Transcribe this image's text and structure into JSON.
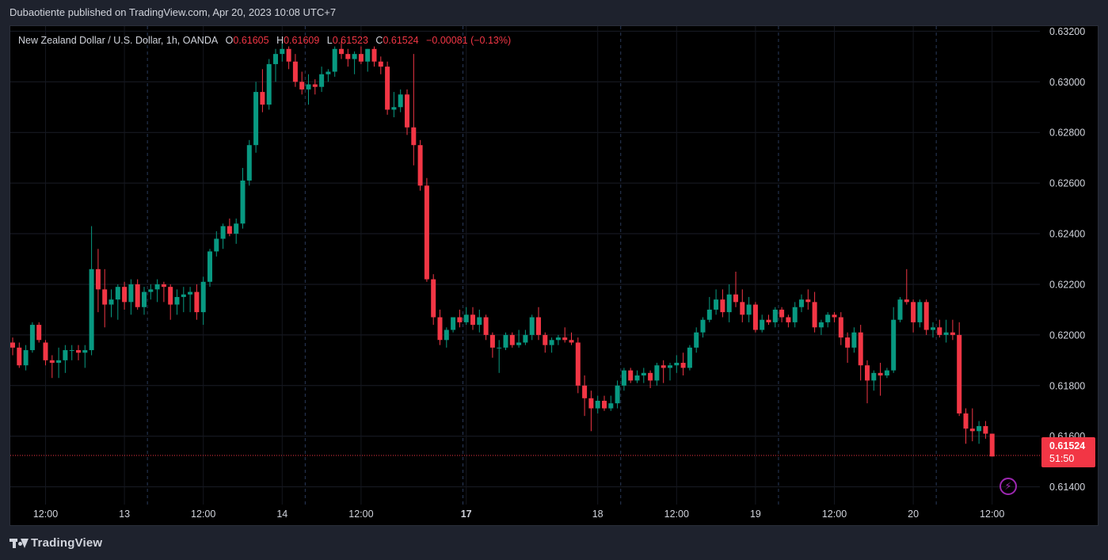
{
  "header": {
    "text": "Dubaotiente published on TradingView.com, Apr 20, 2023 10:08 UTC+7"
  },
  "legend": {
    "symbol": "New Zealand Dollar / U.S. Dollar, 1h, OANDA",
    "open_label": "O",
    "open": "0.61605",
    "high_label": "H",
    "high": "0.61609",
    "low_label": "L",
    "low": "0.61523",
    "close_label": "C",
    "close": "0.61524",
    "change": "−0.00081 (−0.13%)"
  },
  "price_tag": {
    "price": "0.61524",
    "countdown": "51:50"
  },
  "footer": {
    "brand": "TradingView"
  },
  "icons": {
    "logo": "tradingview-logo-icon",
    "alert": "lightning-bolt-icon"
  },
  "colors": {
    "up": "#089981",
    "down": "#f23645",
    "background": "#000000",
    "panel": "#1e222d"
  },
  "chart_data": {
    "type": "candlestick",
    "timeframe": "1h",
    "ylim": [
      0.6133,
      0.6322
    ],
    "y_ticks": [
      "0.61400",
      "0.61600",
      "0.61800",
      "0.62000",
      "0.62200",
      "0.62400",
      "0.62600",
      "0.62800",
      "0.63000",
      "0.63200"
    ],
    "x_ticks": [
      {
        "label": "12:00",
        "bar": 5,
        "bold": false
      },
      {
        "label": "13",
        "bar": 17,
        "bold": false
      },
      {
        "label": "12:00",
        "bar": 29,
        "bold": false
      },
      {
        "label": "14",
        "bar": 41,
        "bold": false
      },
      {
        "label": "12:00",
        "bar": 53,
        "bold": false
      },
      {
        "label": "17",
        "bar": 69,
        "bold": true
      },
      {
        "label": "18",
        "bar": 89,
        "bold": false
      },
      {
        "label": "12:00",
        "bar": 101,
        "bold": false
      },
      {
        "label": "19",
        "bar": 113,
        "bold": false
      },
      {
        "label": "12:00",
        "bar": 125,
        "bold": false
      },
      {
        "label": "20",
        "bar": 137,
        "bold": false
      },
      {
        "label": "12:00",
        "bar": 149,
        "bold": false
      }
    ],
    "session_breaks": [
      20.5,
      44.5,
      68.5,
      92.5,
      116.5,
      140.5
    ],
    "last_price": 0.61524,
    "candles": [
      [
        0.6197,
        0.6199,
        0.6192,
        0.6195
      ],
      [
        0.6195,
        0.6197,
        0.6187,
        0.6188
      ],
      [
        0.6188,
        0.6196,
        0.6186,
        0.6194
      ],
      [
        0.6194,
        0.6205,
        0.6193,
        0.6204
      ],
      [
        0.6204,
        0.6205,
        0.6197,
        0.6198
      ],
      [
        0.6197,
        0.6198,
        0.6188,
        0.619
      ],
      [
        0.619,
        0.6192,
        0.6183,
        0.6189
      ],
      [
        0.6189,
        0.6195,
        0.6183,
        0.619
      ],
      [
        0.619,
        0.6196,
        0.6185,
        0.6194
      ],
      [
        0.6194,
        0.6196,
        0.619,
        0.6194
      ],
      [
        0.6194,
        0.6196,
        0.619,
        0.6193
      ],
      [
        0.6193,
        0.6196,
        0.6187,
        0.6194
      ],
      [
        0.6194,
        0.6243,
        0.6192,
        0.6226
      ],
      [
        0.6226,
        0.6234,
        0.6209,
        0.6218
      ],
      [
        0.6218,
        0.6226,
        0.6203,
        0.6212
      ],
      [
        0.6212,
        0.6218,
        0.6207,
        0.6214
      ],
      [
        0.6214,
        0.622,
        0.6206,
        0.6219
      ],
      [
        0.6219,
        0.6221,
        0.621,
        0.6213
      ],
      [
        0.6213,
        0.6222,
        0.6208,
        0.622
      ],
      [
        0.622,
        0.6222,
        0.621,
        0.6211
      ],
      [
        0.6211,
        0.6219,
        0.6208,
        0.6217
      ],
      [
        0.6217,
        0.622,
        0.6214,
        0.6218
      ],
      [
        0.6218,
        0.6222,
        0.6213,
        0.622
      ],
      [
        0.622,
        0.6221,
        0.6213,
        0.6219
      ],
      [
        0.6219,
        0.622,
        0.6206,
        0.6212
      ],
      [
        0.6212,
        0.6218,
        0.6208,
        0.6215
      ],
      [
        0.6215,
        0.6219,
        0.6209,
        0.6216
      ],
      [
        0.6216,
        0.6219,
        0.6209,
        0.6217
      ],
      [
        0.6217,
        0.622,
        0.6206,
        0.6209
      ],
      [
        0.6209,
        0.6223,
        0.6204,
        0.6221
      ],
      [
        0.6221,
        0.6234,
        0.6219,
        0.6233
      ],
      [
        0.6233,
        0.6241,
        0.6231,
        0.6238
      ],
      [
        0.6238,
        0.6244,
        0.6234,
        0.6243
      ],
      [
        0.6243,
        0.6246,
        0.6239,
        0.624
      ],
      [
        0.624,
        0.6246,
        0.6236,
        0.6244
      ],
      [
        0.6244,
        0.6266,
        0.6242,
        0.6261
      ],
      [
        0.6261,
        0.6277,
        0.6259,
        0.6275
      ],
      [
        0.6275,
        0.63,
        0.6272,
        0.6296
      ],
      [
        0.6296,
        0.6305,
        0.6288,
        0.6291
      ],
      [
        0.6291,
        0.6309,
        0.6289,
        0.6307
      ],
      [
        0.6307,
        0.6313,
        0.63,
        0.6311
      ],
      [
        0.6311,
        0.6316,
        0.6308,
        0.6313
      ],
      [
        0.6313,
        0.6314,
        0.6305,
        0.6308
      ],
      [
        0.6308,
        0.6311,
        0.6298,
        0.63
      ],
      [
        0.63,
        0.6304,
        0.6295,
        0.6297
      ],
      [
        0.6297,
        0.6303,
        0.6291,
        0.6299
      ],
      [
        0.6299,
        0.6301,
        0.6295,
        0.6298
      ],
      [
        0.6298,
        0.6306,
        0.6296,
        0.6303
      ],
      [
        0.6303,
        0.6305,
        0.63,
        0.6304
      ],
      [
        0.6304,
        0.6314,
        0.6302,
        0.6313
      ],
      [
        0.6313,
        0.6316,
        0.6309,
        0.6311
      ],
      [
        0.6311,
        0.6313,
        0.6306,
        0.6309
      ],
      [
        0.6309,
        0.6312,
        0.6303,
        0.6311
      ],
      [
        0.6311,
        0.6314,
        0.6307,
        0.6308
      ],
      [
        0.6308,
        0.6313,
        0.6304,
        0.6313
      ],
      [
        0.6313,
        0.6314,
        0.6306,
        0.6308
      ],
      [
        0.6308,
        0.631,
        0.6303,
        0.6306
      ],
      [
        0.6306,
        0.6308,
        0.6287,
        0.6289
      ],
      [
        0.6289,
        0.6296,
        0.6286,
        0.629
      ],
      [
        0.629,
        0.6297,
        0.6288,
        0.6295
      ],
      [
        0.6295,
        0.6297,
        0.6279,
        0.6282
      ],
      [
        0.6282,
        0.6311,
        0.6267,
        0.6275
      ],
      [
        0.6275,
        0.6277,
        0.6257,
        0.6259
      ],
      [
        0.6259,
        0.6262,
        0.6221,
        0.6222
      ],
      [
        0.6222,
        0.6224,
        0.6204,
        0.6207
      ],
      [
        0.6207,
        0.621,
        0.6196,
        0.6198
      ],
      [
        0.6198,
        0.6203,
        0.6195,
        0.6202
      ],
      [
        0.6202,
        0.6207,
        0.6201,
        0.6207
      ],
      [
        0.6207,
        0.621,
        0.6203,
        0.6205
      ],
      [
        0.6205,
        0.6211,
        0.6204,
        0.6208
      ],
      [
        0.6208,
        0.6211,
        0.6202,
        0.6204
      ],
      [
        0.6204,
        0.621,
        0.6201,
        0.6207
      ],
      [
        0.6207,
        0.6208,
        0.6198,
        0.62
      ],
      [
        0.62,
        0.6201,
        0.6191,
        0.6195
      ],
      [
        0.6195,
        0.6198,
        0.6185,
        0.6195
      ],
      [
        0.6195,
        0.6201,
        0.6194,
        0.62
      ],
      [
        0.62,
        0.6201,
        0.6195,
        0.6196
      ],
      [
        0.6196,
        0.6202,
        0.6195,
        0.6197
      ],
      [
        0.6197,
        0.6202,
        0.6196,
        0.62
      ],
      [
        0.62,
        0.6208,
        0.6198,
        0.6207
      ],
      [
        0.6207,
        0.6211,
        0.6198,
        0.62
      ],
      [
        0.62,
        0.6201,
        0.6193,
        0.6196
      ],
      [
        0.6196,
        0.6199,
        0.6193,
        0.6198
      ],
      [
        0.6198,
        0.62,
        0.6196,
        0.6199
      ],
      [
        0.6199,
        0.6203,
        0.6197,
        0.6198
      ],
      [
        0.6198,
        0.6201,
        0.6196,
        0.6197
      ],
      [
        0.6197,
        0.6199,
        0.6177,
        0.618
      ],
      [
        0.618,
        0.6184,
        0.6168,
        0.6175
      ],
      [
        0.6175,
        0.6178,
        0.6162,
        0.6171
      ],
      [
        0.6171,
        0.6176,
        0.6169,
        0.6174
      ],
      [
        0.6174,
        0.6176,
        0.617,
        0.6171
      ],
      [
        0.6171,
        0.6176,
        0.617,
        0.6173
      ],
      [
        0.6173,
        0.6182,
        0.6171,
        0.618
      ],
      [
        0.618,
        0.6187,
        0.6178,
        0.6186
      ],
      [
        0.6186,
        0.6187,
        0.6181,
        0.6182
      ],
      [
        0.6182,
        0.6186,
        0.6181,
        0.6184
      ],
      [
        0.6184,
        0.6187,
        0.6181,
        0.6185
      ],
      [
        0.6185,
        0.6186,
        0.6179,
        0.6182
      ],
      [
        0.6182,
        0.6189,
        0.618,
        0.6188
      ],
      [
        0.6188,
        0.619,
        0.6181,
        0.6187
      ],
      [
        0.6187,
        0.6189,
        0.6182,
        0.6188
      ],
      [
        0.6188,
        0.6192,
        0.6185,
        0.6189
      ],
      [
        0.6189,
        0.6193,
        0.6184,
        0.6187
      ],
      [
        0.6187,
        0.6196,
        0.6186,
        0.6195
      ],
      [
        0.6195,
        0.6203,
        0.6193,
        0.6201
      ],
      [
        0.6201,
        0.6207,
        0.6199,
        0.6206
      ],
      [
        0.6206,
        0.6215,
        0.6205,
        0.621
      ],
      [
        0.621,
        0.6218,
        0.6208,
        0.6214
      ],
      [
        0.6214,
        0.6218,
        0.6207,
        0.6209
      ],
      [
        0.6209,
        0.622,
        0.6205,
        0.6216
      ],
      [
        0.6216,
        0.6225,
        0.6211,
        0.6213
      ],
      [
        0.6213,
        0.6218,
        0.6205,
        0.6208
      ],
      [
        0.6208,
        0.6215,
        0.6205,
        0.6212
      ],
      [
        0.6212,
        0.6213,
        0.6201,
        0.6202
      ],
      [
        0.6202,
        0.6208,
        0.6201,
        0.6206
      ],
      [
        0.6206,
        0.6208,
        0.6204,
        0.6205
      ],
      [
        0.6205,
        0.6211,
        0.6203,
        0.621
      ],
      [
        0.621,
        0.6211,
        0.6205,
        0.6207
      ],
      [
        0.6207,
        0.6208,
        0.6203,
        0.6205
      ],
      [
        0.6205,
        0.6213,
        0.6203,
        0.6211
      ],
      [
        0.6211,
        0.6216,
        0.6209,
        0.6214
      ],
      [
        0.6214,
        0.6218,
        0.621,
        0.6213
      ],
      [
        0.6213,
        0.6217,
        0.6201,
        0.6203
      ],
      [
        0.6203,
        0.6206,
        0.62,
        0.6205
      ],
      [
        0.6205,
        0.6209,
        0.6203,
        0.6208
      ],
      [
        0.6208,
        0.6209,
        0.6205,
        0.6207
      ],
      [
        0.6207,
        0.6209,
        0.6196,
        0.6199
      ],
      [
        0.6199,
        0.6201,
        0.6189,
        0.6195
      ],
      [
        0.6195,
        0.6203,
        0.6193,
        0.6201
      ],
      [
        0.6201,
        0.6204,
        0.6182,
        0.6188
      ],
      [
        0.6188,
        0.619,
        0.6173,
        0.6182
      ],
      [
        0.6182,
        0.6186,
        0.6178,
        0.6185
      ],
      [
        0.6185,
        0.6189,
        0.6176,
        0.6184
      ],
      [
        0.6184,
        0.6187,
        0.6183,
        0.6186
      ],
      [
        0.6186,
        0.6211,
        0.6185,
        0.6206
      ],
      [
        0.6206,
        0.6215,
        0.6205,
        0.6214
      ],
      [
        0.6214,
        0.6226,
        0.6212,
        0.6213
      ],
      [
        0.6213,
        0.6214,
        0.6201,
        0.6205
      ],
      [
        0.6205,
        0.6214,
        0.6203,
        0.6213
      ],
      [
        0.6213,
        0.6214,
        0.62,
        0.6202
      ],
      [
        0.6202,
        0.6205,
        0.6199,
        0.6203
      ],
      [
        0.6203,
        0.6206,
        0.6199,
        0.62
      ],
      [
        0.62,
        0.6206,
        0.6197,
        0.6201
      ],
      [
        0.6201,
        0.6206,
        0.6198,
        0.62
      ],
      [
        0.62,
        0.6205,
        0.6168,
        0.6169
      ],
      [
        0.6169,
        0.6171,
        0.6157,
        0.6163
      ],
      [
        0.6163,
        0.6171,
        0.6158,
        0.6162
      ],
      [
        0.6162,
        0.6166,
        0.6157,
        0.6164
      ],
      [
        0.6164,
        0.6166,
        0.6159,
        0.6161
      ],
      [
        0.6161,
        0.6161,
        0.6152,
        0.6152
      ]
    ]
  }
}
